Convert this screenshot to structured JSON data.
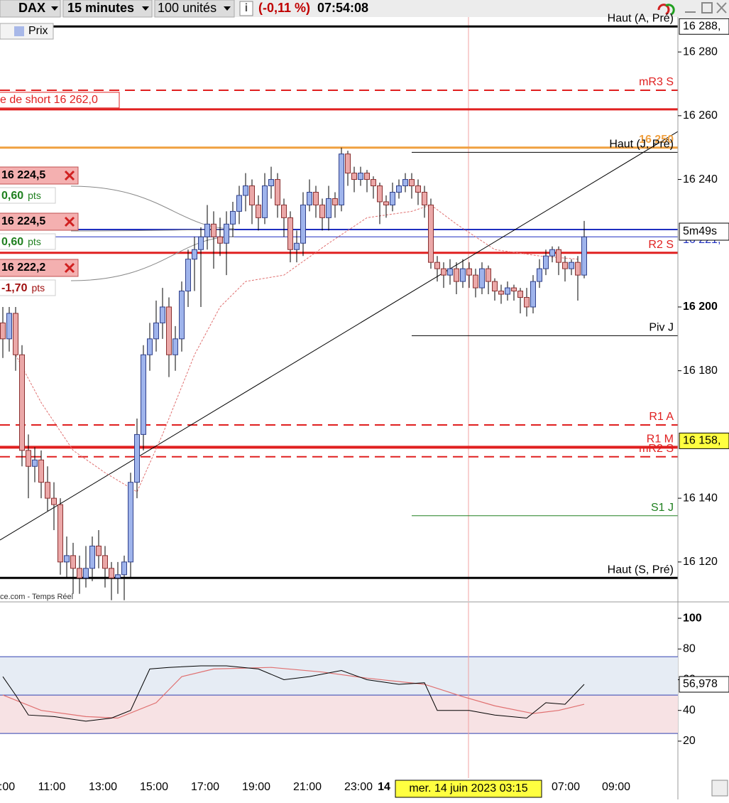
{
  "toolbar": {
    "symbol": "DAX",
    "interval": "15 minutes",
    "quantity": "100 unités",
    "change": "(-0,11 %)",
    "time": "07:54:08"
  },
  "legend": "Prix",
  "source": "ce.com - Temps Réel",
  "price_axis": {
    "ylim": [
      16107.7,
      16288.5
    ],
    "yticks": [
      {
        "value": 16280,
        "label": "16 280"
      },
      {
        "value": 16260,
        "label": "16 260"
      },
      {
        "value": 16240,
        "label": "16 240"
      },
      {
        "value": 16200,
        "label": "16 200"
      },
      {
        "value": 16180,
        "label": "16 180"
      },
      {
        "value": 16140,
        "label": "16 140"
      },
      {
        "value": 16120,
        "label": "16 120"
      }
    ]
  },
  "price_labels": [
    {
      "value": 16288,
      "label": "16 288,"
    },
    {
      "value": 16221,
      "label": "16 221,"
    },
    {
      "value": 16158,
      "label": "16 158,"
    }
  ],
  "countdown": "5m49s",
  "levels": [
    {
      "value": 16288,
      "label": "Haut (A, Pré)",
      "color": "#000000",
      "width": 3
    },
    {
      "value": 16268,
      "label": "mR3 S",
      "color": "#e02020",
      "width": 2,
      "dash": true
    },
    {
      "value": 16262,
      "label": "e de short  16 262,0",
      "color": "#e02020",
      "width": 3
    },
    {
      "value": 16250,
      "label": "16 250",
      "color": "#f0a040",
      "width": 3
    },
    {
      "value": 16248.5,
      "label": "Haut (J, Pré)",
      "color": "#000000",
      "width": 1,
      "extent": "right"
    },
    {
      "value": 16224.3,
      "color": "#1f2fc0",
      "width": 2
    },
    {
      "value": 16222,
      "color": "#1f2fc0",
      "width": 1
    },
    {
      "value": 16217,
      "label": "R2 S",
      "color": "#e02020",
      "width": 3
    },
    {
      "value": 16191,
      "label": "Piv J",
      "color": "#000000",
      "width": 1,
      "extent": "right"
    },
    {
      "value": 16163,
      "label": "R1 A",
      "color": "#e02020",
      "width": 2,
      "dash": true
    },
    {
      "value": 16156,
      "label": "R1 M",
      "color": "#e02020",
      "width": 4
    },
    {
      "value": 16153,
      "label": "mR2 S",
      "color": "#e02020",
      "width": 2,
      "dash": true
    },
    {
      "value": 16134.5,
      "label": "S1 J",
      "color": "#208020",
      "width": 1,
      "extent": "right"
    },
    {
      "value": 16115,
      "label": "Haut (S, Pré)",
      "color": "#000000",
      "width": 3
    }
  ],
  "orders": [
    {
      "price": "16 224,5",
      "pnl": "0,60",
      "unit": "pts"
    },
    {
      "price": "16 224,5",
      "pnl": "0,60",
      "unit": "pts"
    },
    {
      "price": "16 222,2",
      "pnl": "-1,70",
      "unit": "pts"
    }
  ],
  "candles": [
    [
      16195,
      16200,
      16184,
      16190
    ],
    [
      16190,
      16200,
      16186,
      16198
    ],
    [
      16198,
      16200,
      16180,
      16185
    ],
    [
      16185,
      16188,
      16150,
      16155
    ],
    [
      16155,
      16160,
      16140,
      16150
    ],
    [
      16150,
      16156,
      16145,
      16152
    ],
    [
      16152,
      16155,
      16140,
      16145
    ],
    [
      16145,
      16150,
      16136,
      16140
    ],
    [
      16140,
      16145,
      16130,
      16138
    ],
    [
      16138,
      16140,
      16116,
      16120
    ],
    [
      16120,
      16128,
      16115,
      16122
    ],
    [
      16122,
      16126,
      16110,
      16118
    ],
    [
      16118,
      16122,
      16110,
      16115
    ],
    [
      16115,
      16125,
      16112,
      16118
    ],
    [
      16118,
      16128,
      16114,
      16125
    ],
    [
      16125,
      16130,
      16118,
      16122
    ],
    [
      16122,
      16125,
      16112,
      16118
    ],
    [
      16118,
      16120,
      16108,
      16115
    ],
    [
      16115,
      16120,
      16110,
      16116
    ],
    [
      16116,
      16122,
      16108,
      16120
    ],
    [
      16120,
      16148,
      16115,
      16145
    ],
    [
      16145,
      16165,
      16140,
      16160
    ],
    [
      16160,
      16188,
      16155,
      16185
    ],
    [
      16185,
      16195,
      16180,
      16190
    ],
    [
      16190,
      16202,
      16186,
      16195
    ],
    [
      16195,
      16206,
      16190,
      16200
    ],
    [
      16200,
      16203,
      16178,
      16185
    ],
    [
      16185,
      16194,
      16180,
      16190
    ],
    [
      16190,
      16208,
      16186,
      16205
    ],
    [
      16205,
      16218,
      16200,
      16215
    ],
    [
      16215,
      16222,
      16205,
      16218
    ],
    [
      16218,
      16225,
      16200,
      16222
    ],
    [
      16222,
      16232,
      16218,
      16226
    ],
    [
      16226,
      16230,
      16212,
      16222
    ],
    [
      16222,
      16228,
      16216,
      16220
    ],
    [
      16220,
      16230,
      16210,
      16226
    ],
    [
      16226,
      16233,
      16222,
      16230
    ],
    [
      16230,
      16238,
      16226,
      16235
    ],
    [
      16235,
      16242,
      16230,
      16238
    ],
    [
      16238,
      16240,
      16226,
      16232
    ],
    [
      16232,
      16235,
      16224,
      16228
    ],
    [
      16228,
      16242,
      16226,
      16238
    ],
    [
      16238,
      16244,
      16234,
      16240
    ],
    [
      16240,
      16242,
      16228,
      16232
    ],
    [
      16232,
      16234,
      16222,
      16228
    ],
    [
      16228,
      16230,
      16214,
      16218
    ],
    [
      16218,
      16224,
      16214,
      16220
    ],
    [
      16220,
      16236,
      16216,
      16232
    ],
    [
      16232,
      16240,
      16230,
      16236
    ],
    [
      16236,
      16238,
      16228,
      16232
    ],
    [
      16232,
      16234,
      16224,
      16228
    ],
    [
      16228,
      16238,
      16224,
      16234
    ],
    [
      16234,
      16236,
      16228,
      16232
    ],
    [
      16232,
      16250,
      16230,
      16248
    ],
    [
      16248,
      16249,
      16238,
      16242
    ],
    [
      16242,
      16244,
      16236,
      16240
    ],
    [
      16240,
      16244,
      16238,
      16242
    ],
    [
      16242,
      16243,
      16236,
      16240
    ],
    [
      16240,
      16241,
      16234,
      16238
    ],
    [
      16238,
      16239,
      16226,
      16233
    ],
    [
      16233,
      16235,
      16228,
      16232
    ],
    [
      16232,
      16239,
      16230,
      16236
    ],
    [
      16236,
      16240,
      16234,
      16238
    ],
    [
      16238,
      16242,
      16236,
      16240
    ],
    [
      16240,
      16242,
      16234,
      16238
    ],
    [
      16238,
      16240,
      16232,
      16236
    ],
    [
      16236,
      16238,
      16228,
      16232
    ],
    [
      16232,
      16234,
      16212,
      16214
    ],
    [
      16214,
      16216,
      16208,
      16212
    ],
    [
      16212,
      16214,
      16206,
      16210
    ],
    [
      16210,
      16215,
      16207,
      16212
    ],
    [
      16212,
      16214,
      16204,
      16208
    ],
    [
      16208,
      16215,
      16206,
      16212
    ],
    [
      16212,
      16214,
      16206,
      16210
    ],
    [
      16210,
      16212,
      16203,
      16206
    ],
    [
      16206,
      16214,
      16204,
      16212
    ],
    [
      16212,
      16213,
      16204,
      16208
    ],
    [
      16208,
      16209,
      16202,
      16205
    ],
    [
      16205,
      16207,
      16201,
      16204
    ],
    [
      16204,
      16208,
      16202,
      16206
    ],
    [
      16206,
      16207,
      16202,
      16205
    ],
    [
      16205,
      16206,
      16198,
      16203
    ],
    [
      16203,
      16206,
      16197,
      16200
    ],
    [
      16200,
      16210,
      16198,
      16208
    ],
    [
      16208,
      16215,
      16206,
      16212
    ],
    [
      16212,
      16218,
      16210,
      16216
    ],
    [
      16216,
      16219,
      16214,
      16218
    ],
    [
      16218,
      16219,
      16210,
      16214
    ],
    [
      16214,
      16216,
      16208,
      16212
    ],
    [
      16212,
      16215,
      16210,
      16214
    ],
    [
      16214,
      16216,
      16202,
      16210
    ],
    [
      16210,
      16227,
      16209,
      16222
    ]
  ],
  "moving_average": {
    "index": [
      2,
      6,
      11,
      16,
      21,
      25,
      30,
      34,
      38,
      44,
      51,
      57,
      64,
      67,
      71,
      77,
      84,
      90
    ],
    "values": [
      16185,
      16170,
      16155,
      16148,
      16142,
      16160,
      16185,
      16200,
      16208,
      16210,
      16220,
      16228,
      16230,
      16232,
      16226,
      16218,
      16216,
      16215
    ]
  },
  "time_axis": [
    ":00",
    "11:00",
    "13:00",
    "15:00",
    "17:00",
    "19:00",
    "21:00",
    "23:00",
    "14",
    "07:00",
    "09:00"
  ],
  "crosshair_label": "mer. 14 juin 2023 03:15",
  "oscillator": {
    "ylim": [
      -2.7,
      110.2
    ],
    "yticks": [
      100,
      80,
      60,
      40,
      20
    ],
    "bands": [
      75,
      50,
      25
    ],
    "rsi": {
      "index": [
        0,
        2,
        4,
        8,
        13,
        17,
        20,
        23,
        26,
        31,
        35,
        40,
        44,
        48,
        53,
        57,
        62,
        66,
        68,
        73,
        77,
        82,
        85,
        88,
        91
      ],
      "values": [
        62,
        50,
        37,
        36,
        33,
        35,
        40,
        67,
        68,
        69,
        69,
        67,
        60,
        62,
        66,
        60,
        57,
        58,
        40,
        40,
        37,
        35,
        45,
        44,
        57
      ]
    },
    "signal": {
      "index": [
        0,
        6,
        13,
        18,
        24,
        28,
        33,
        42,
        50,
        57,
        66,
        72,
        77,
        83,
        87,
        91
      ],
      "values": [
        50,
        40,
        36,
        35,
        45,
        62,
        67,
        68,
        65,
        61,
        57,
        49,
        43,
        38,
        40,
        44
      ]
    },
    "last": {
      "value": 56.978,
      "label": "56,978"
    }
  }
}
